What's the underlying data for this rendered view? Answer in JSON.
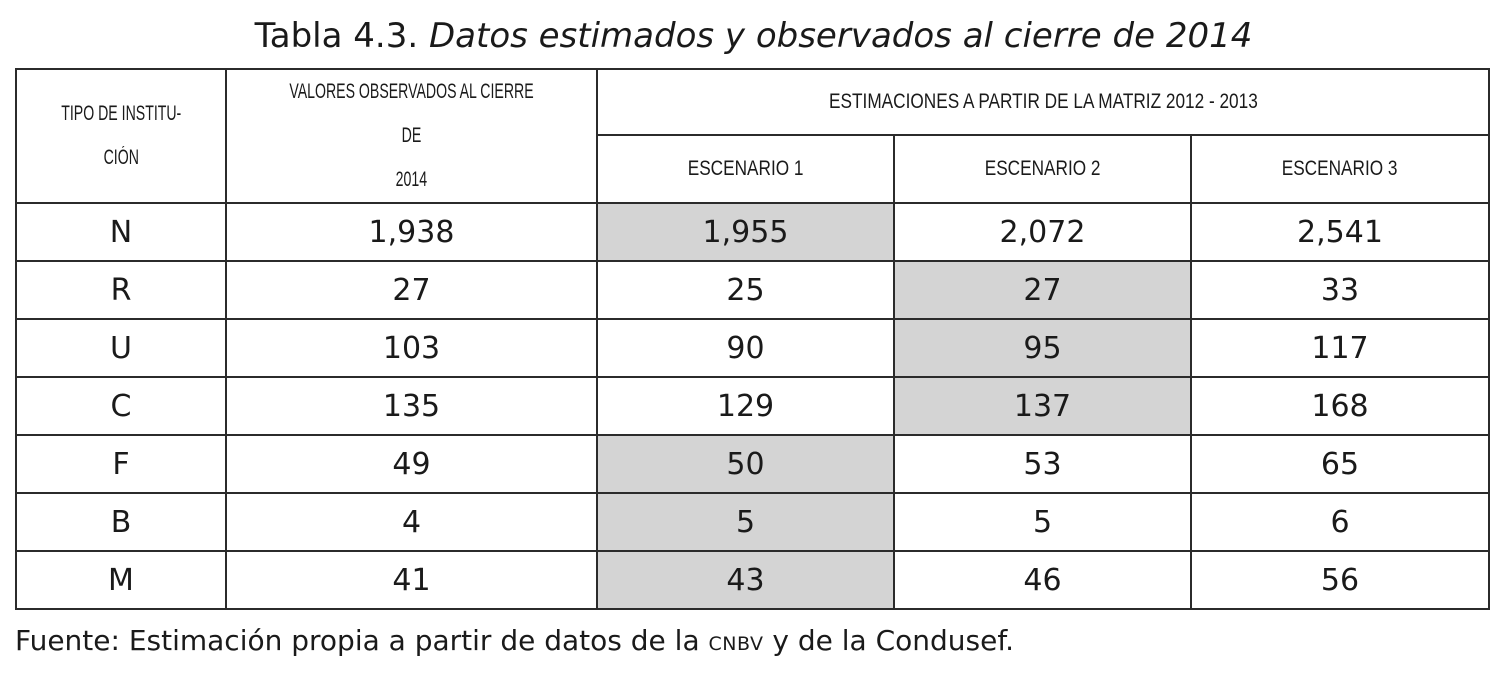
{
  "table": {
    "title_prefix": "Tabla 4.3.",
    "title_italic": "Datos estimados y observados al cierre de 2014",
    "headers": {
      "tipo_line1": "TIPO DE INSTITU-",
      "tipo_line2": "CIÓN",
      "observados_line1": "VALORES OBSERVADOS AL CIERRE DE",
      "observados_line2": "2014",
      "estimaciones": "ESTIMACIONES A PARTIR DE LA MATRIZ 2012 - 2013",
      "escenario1": "ESCENARIO 1",
      "escenario2": "ESCENARIO 2",
      "escenario3": "ESCENARIO 3"
    },
    "rows": [
      {
        "tipo": "N",
        "observado": "1,938",
        "esc1": "1,955",
        "esc2": "2,072",
        "esc3": "2,541",
        "highlight": "esc1"
      },
      {
        "tipo": "R",
        "observado": "27",
        "esc1": "25",
        "esc2": "27",
        "esc3": "33",
        "highlight": "esc2"
      },
      {
        "tipo": "U",
        "observado": "103",
        "esc1": "90",
        "esc2": "95",
        "esc3": "117",
        "highlight": "esc2"
      },
      {
        "tipo": "C",
        "observado": "135",
        "esc1": "129",
        "esc2": "137",
        "esc3": "168",
        "highlight": "esc2"
      },
      {
        "tipo": "F",
        "observado": "49",
        "esc1": "50",
        "esc2": "53",
        "esc3": "65",
        "highlight": "esc1"
      },
      {
        "tipo": "B",
        "observado": "4",
        "esc1": "5",
        "esc2": "5",
        "esc3": "6",
        "highlight": "esc1"
      },
      {
        "tipo": "M",
        "observado": "41",
        "esc1": "43",
        "esc2": "46",
        "esc3": "56",
        "highlight": "esc1"
      }
    ],
    "highlight_color": "#d4d4d4",
    "source_prefix": "Fuente: Estimación propia a partir de datos de la",
    "source_abbrev": "CNBV",
    "source_suffix": "y de la Condusef."
  }
}
